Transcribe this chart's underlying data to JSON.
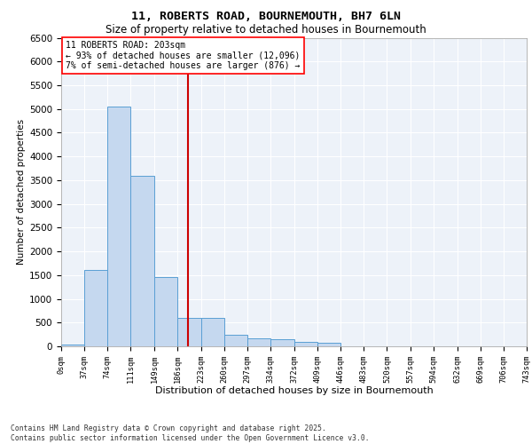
{
  "title_line1": "11, ROBERTS ROAD, BOURNEMOUTH, BH7 6LN",
  "title_line2": "Size of property relative to detached houses in Bournemouth",
  "xlabel": "Distribution of detached houses by size in Bournemouth",
  "ylabel": "Number of detached properties",
  "annotation_title": "11 ROBERTS ROAD: 203sqm",
  "annotation_line2": "← 93% of detached houses are smaller (12,096)",
  "annotation_line3": "7% of semi-detached houses are larger (876) →",
  "property_size": 203,
  "bar_edges": [
    0,
    37,
    74,
    111,
    149,
    186,
    223,
    260,
    297,
    334,
    372,
    409,
    446,
    483,
    520,
    557,
    594,
    632,
    669,
    706,
    743
  ],
  "bar_heights": [
    30,
    1600,
    5050,
    3600,
    1450,
    600,
    600,
    250,
    175,
    150,
    100,
    80,
    0,
    0,
    0,
    0,
    0,
    0,
    0,
    0
  ],
  "bar_color": "#c5d8ef",
  "bar_edge_color": "#5a9fd4",
  "vline_color": "#cc0000",
  "background_color": "#edf2f9",
  "grid_color": "#ffffff",
  "footer_line1": "Contains HM Land Registry data © Crown copyright and database right 2025.",
  "footer_line2": "Contains public sector information licensed under the Open Government Licence v3.0.",
  "ylim": [
    0,
    6500
  ],
  "yticks": [
    0,
    500,
    1000,
    1500,
    2000,
    2500,
    3000,
    3500,
    4000,
    4500,
    5000,
    5500,
    6000,
    6500
  ]
}
